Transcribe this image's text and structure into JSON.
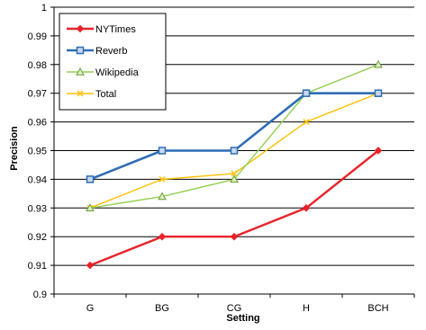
{
  "chart_data": {
    "type": "line",
    "title": "",
    "xlabel": "Setting",
    "ylabel": "Precision",
    "categories": [
      "G",
      "BG",
      "CG",
      "H",
      "BCH"
    ],
    "ylim": [
      0.9,
      1.0
    ],
    "yticks": [
      "0.9",
      "0.91",
      "0.92",
      "0.93",
      "0.94",
      "0.95",
      "0.96",
      "0.97",
      "0.98",
      "0.99",
      "1"
    ],
    "grid": "horizontal",
    "legend_position": "top-left",
    "series": [
      {
        "name": "NYTimes",
        "values": [
          0.91,
          0.92,
          0.92,
          0.93,
          0.95
        ],
        "color": "#e8232a",
        "marker": "diamond"
      },
      {
        "name": "Reverb",
        "values": [
          0.94,
          0.95,
          0.95,
          0.97,
          0.97
        ],
        "color": "#2f6db5",
        "marker": "square"
      },
      {
        "name": "Wikipedia",
        "values": [
          0.93,
          0.934,
          0.94,
          0.97,
          0.98
        ],
        "color": "#92d050",
        "marker": "triangle"
      },
      {
        "name": "Total",
        "values": [
          0.93,
          0.94,
          0.942,
          0.96,
          0.97
        ],
        "color": "#ffc000",
        "marker": "x"
      }
    ]
  }
}
